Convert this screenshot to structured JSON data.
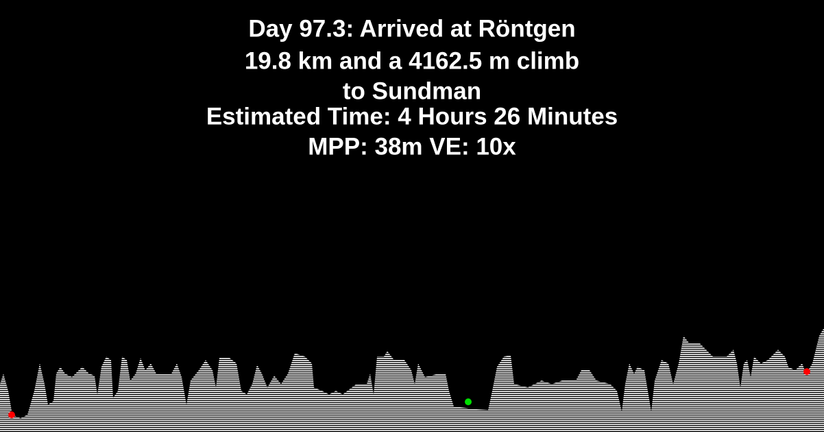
{
  "header": {
    "lines": [
      "Day 97.3: Arrived at Röntgen",
      "19.8 km and a 4162.5 m climb",
      "to Sundman",
      "Estimated Time: 4 Hours 26 Minutes",
      "MPP: 38m VE: 10x"
    ]
  }
}
